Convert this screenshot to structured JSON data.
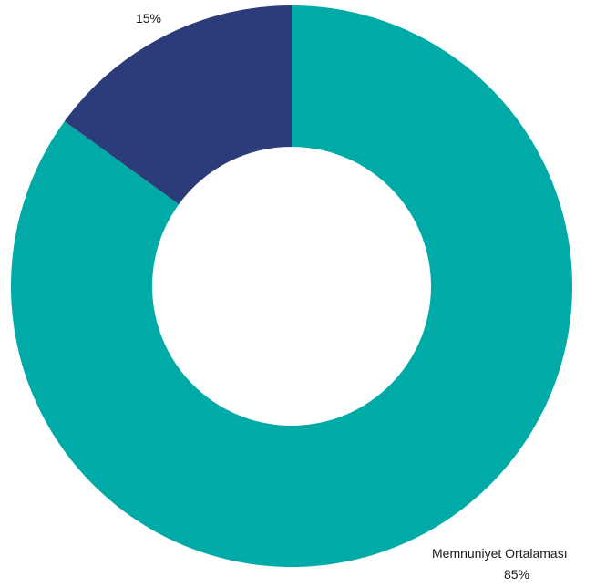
{
  "chart_data": {
    "type": "pie",
    "donut": true,
    "start": "top",
    "direction": "clockwise",
    "slices": [
      {
        "name": "Memnuniyet Ortalaması",
        "value": 85,
        "label": "85%",
        "color": "#00aaa6"
      },
      {
        "name": "",
        "value": 15,
        "label": "15%",
        "color": "#2c3c7a"
      }
    ]
  }
}
